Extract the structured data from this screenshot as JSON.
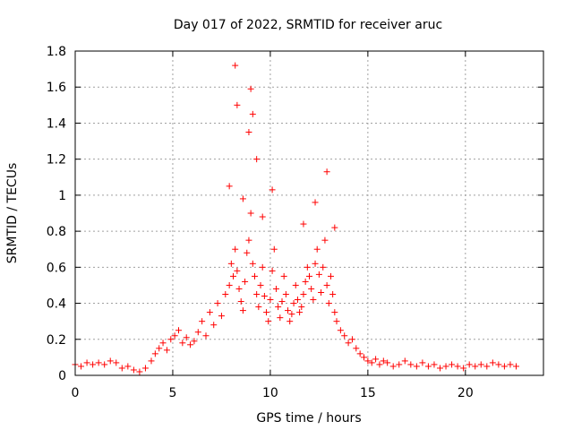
{
  "chart_data": {
    "type": "scatter",
    "title": "Day 017 of 2022, SRMTID for receiver aruc",
    "xlabel": "GPS time / hours",
    "ylabel": "SRMTID / TECUs",
    "xlim": [
      0,
      24
    ],
    "ylim": [
      0,
      1.8
    ],
    "xticks": [
      0,
      5,
      10,
      15,
      20
    ],
    "yticks": [
      0,
      0.2,
      0.4,
      0.6,
      0.8,
      1,
      1.2,
      1.4,
      1.6,
      1.8
    ],
    "xtick_labels": [
      "0",
      "5",
      "10",
      "15",
      "20"
    ],
    "ytick_labels": [
      "0",
      "0.2",
      "0.4",
      "0.6",
      "0.8",
      "1",
      "1.2",
      "1.4",
      "1.6",
      "1.8"
    ],
    "grid": true,
    "marker": "plus",
    "color": "#ff0000",
    "series": [
      {
        "name": "SRMTID",
        "x": [
          0.0,
          0.3,
          0.6,
          0.9,
          1.2,
          1.5,
          1.8,
          2.1,
          2.4,
          2.7,
          3.0,
          3.3,
          3.6,
          3.9,
          4.1,
          4.3,
          4.5,
          4.7,
          4.9,
          5.1,
          5.3,
          5.5,
          5.7,
          5.9,
          6.1,
          6.3,
          6.5,
          6.7,
          6.9,
          7.1,
          7.3,
          7.5,
          7.7,
          7.9,
          8.0,
          8.1,
          8.2,
          8.3,
          8.4,
          8.5,
          8.6,
          8.7,
          8.8,
          8.9,
          9.0,
          9.1,
          9.2,
          9.3,
          9.4,
          9.5,
          9.6,
          9.7,
          9.8,
          9.9,
          10.0,
          10.1,
          10.2,
          10.3,
          10.4,
          10.5,
          10.6,
          10.7,
          10.8,
          10.9,
          11.0,
          11.1,
          11.2,
          11.3,
          11.4,
          11.5,
          11.6,
          11.7,
          11.8,
          11.9,
          12.0,
          12.1,
          12.2,
          12.3,
          12.4,
          12.5,
          12.6,
          12.7,
          12.8,
          12.9,
          13.0,
          13.1,
          13.2,
          13.3,
          13.4,
          13.6,
          13.8,
          14.0,
          14.2,
          14.4,
          14.6,
          14.8,
          15.0,
          15.2,
          15.4,
          15.6,
          15.8,
          16.0,
          16.3,
          16.6,
          16.9,
          17.2,
          17.5,
          17.8,
          18.1,
          18.4,
          18.7,
          19.0,
          19.3,
          19.6,
          19.9,
          20.2,
          20.5,
          20.8,
          21.1,
          21.4,
          21.7,
          22.0,
          22.3,
          22.6,
          8.2,
          9.0,
          9.1,
          8.9,
          8.3,
          9.3,
          12.9,
          12.3,
          10.1,
          11.7,
          8.6,
          7.9,
          9.6,
          13.3
        ],
        "y": [
          0.06,
          0.05,
          0.07,
          0.06,
          0.07,
          0.06,
          0.08,
          0.07,
          0.04,
          0.05,
          0.03,
          0.02,
          0.04,
          0.08,
          0.12,
          0.15,
          0.18,
          0.14,
          0.2,
          0.22,
          0.25,
          0.18,
          0.21,
          0.17,
          0.19,
          0.24,
          0.3,
          0.22,
          0.35,
          0.28,
          0.4,
          0.33,
          0.45,
          0.5,
          0.62,
          0.55,
          0.7,
          0.58,
          0.48,
          0.41,
          0.36,
          0.52,
          0.68,
          0.75,
          0.9,
          0.62,
          0.55,
          0.45,
          0.38,
          0.5,
          0.6,
          0.44,
          0.35,
          0.3,
          0.42,
          0.58,
          0.7,
          0.48,
          0.38,
          0.32,
          0.41,
          0.55,
          0.45,
          0.36,
          0.3,
          0.34,
          0.4,
          0.5,
          0.42,
          0.35,
          0.38,
          0.45,
          0.52,
          0.6,
          0.55,
          0.48,
          0.42,
          0.62,
          0.7,
          0.56,
          0.46,
          0.6,
          0.75,
          0.5,
          0.4,
          0.55,
          0.45,
          0.35,
          0.3,
          0.25,
          0.22,
          0.18,
          0.2,
          0.15,
          0.12,
          0.1,
          0.08,
          0.07,
          0.09,
          0.06,
          0.08,
          0.07,
          0.05,
          0.06,
          0.08,
          0.06,
          0.05,
          0.07,
          0.05,
          0.06,
          0.04,
          0.05,
          0.06,
          0.05,
          0.04,
          0.06,
          0.05,
          0.06,
          0.05,
          0.07,
          0.06,
          0.05,
          0.06,
          0.05,
          1.72,
          1.59,
          1.45,
          1.35,
          1.5,
          1.2,
          1.13,
          0.96,
          1.03,
          0.84,
          0.98,
          1.05,
          0.88,
          0.82
        ]
      }
    ]
  }
}
